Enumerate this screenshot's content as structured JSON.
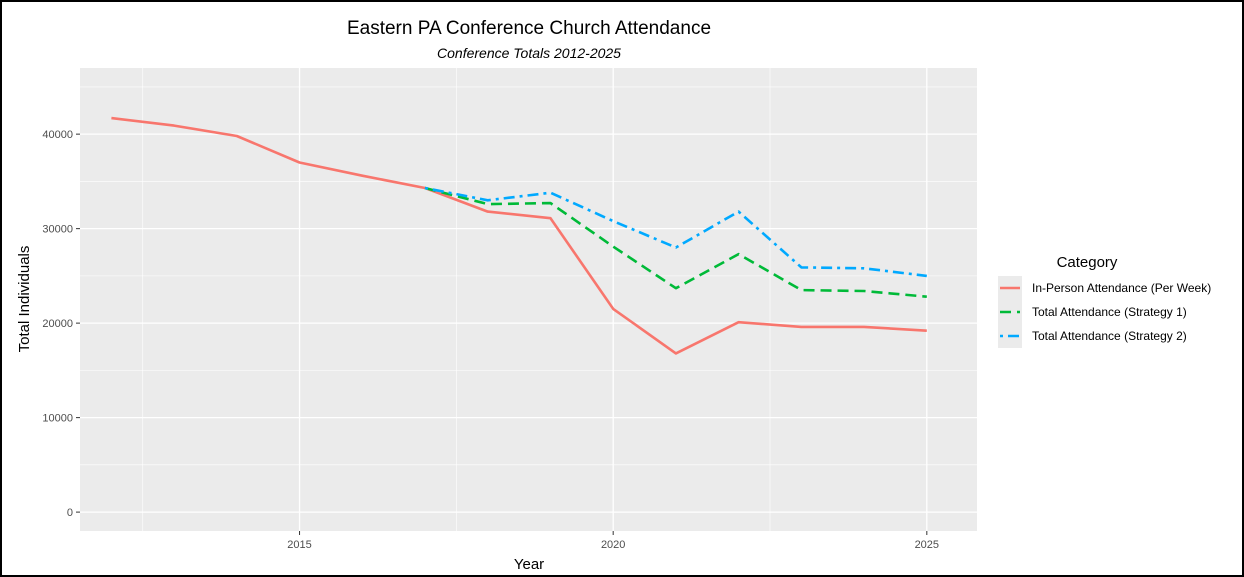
{
  "chart_data": {
    "type": "line",
    "title": "Eastern PA Conference Church Attendance",
    "subtitle": "Conference Totals 2012-2025",
    "xlabel": "Year",
    "ylabel": "Total Individuals",
    "xlim": [
      2011.5,
      2025.8
    ],
    "ylim": [
      -2000,
      47000
    ],
    "x_ticks": [
      2015,
      2020,
      2025
    ],
    "x_minor_ticks": [
      2012.5,
      2017.5,
      2022.5
    ],
    "y_ticks": [
      0,
      10000,
      20000,
      30000,
      40000
    ],
    "y_minor_ticks": [
      5000,
      15000,
      25000,
      35000,
      45000
    ],
    "x_tick_labels": [
      "2015",
      "2020",
      "2025"
    ],
    "y_tick_labels": [
      "0",
      "10000",
      "20000",
      "30000",
      "40000"
    ],
    "grid": true,
    "panel_background": "#ebebeb",
    "legend": {
      "title": "Category",
      "placement": "right"
    },
    "series": [
      {
        "name": "In-Person Attendance (Per Week)",
        "color": "#f8766d",
        "dash": "solid",
        "x": [
          2012,
          2013,
          2014,
          2015,
          2016,
          2017,
          2018,
          2019,
          2020,
          2021,
          2022,
          2023,
          2024,
          2025
        ],
        "values": [
          41700,
          40900,
          39800,
          37000,
          35600,
          34300,
          31800,
          31100,
          21500,
          16800,
          20100,
          19600,
          19600,
          19200
        ]
      },
      {
        "name": "Total Attendance (Strategy 1)",
        "color": "#00ba38",
        "dash": "dashed",
        "x": [
          2017,
          2018,
          2019,
          2020,
          2021,
          2022,
          2023,
          2024,
          2025
        ],
        "values": [
          34300,
          32600,
          32700,
          28100,
          23700,
          27300,
          23500,
          23400,
          22800
        ]
      },
      {
        "name": "Total Attendance (Strategy 2)",
        "color": "#00a9ff",
        "dash": "dotdash",
        "x": [
          2017,
          2018,
          2019,
          2020,
          2021,
          2022,
          2023,
          2024,
          2025
        ],
        "values": [
          34300,
          33000,
          33800,
          30800,
          28000,
          31800,
          25900,
          25800,
          25000
        ]
      }
    ]
  }
}
